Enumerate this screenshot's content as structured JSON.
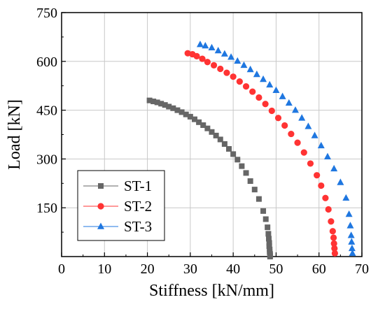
{
  "chart_data": {
    "type": "scatter",
    "title": "",
    "xlabel": "Stiffness [kN/mm]",
    "ylabel": "Load [kN]",
    "xlim": [
      0,
      70
    ],
    "ylim": [
      0,
      750
    ],
    "x_ticks": [
      "0",
      "10",
      "20",
      "30",
      "40",
      "50",
      "60",
      "70"
    ],
    "y_ticks": [
      "150",
      "300",
      "450",
      "600",
      "750"
    ],
    "grid": true,
    "legend_position": "bottom-left",
    "series": [
      {
        "name": "ST-1",
        "color": "#666666",
        "marker": "square",
        "x": [
          20.5,
          21.4,
          22.3,
          23.2,
          24.1,
          25.0,
          26.0,
          27.0,
          28.0,
          29.0,
          30.0,
          31.0,
          32.0,
          33.0,
          34.0,
          35.0,
          36.0,
          37.0,
          38.0,
          39.0,
          40.0,
          41.0,
          42.0,
          43.0,
          44.0,
          45.0,
          46.0,
          47.0,
          47.6,
          48.0,
          48.2,
          48.3,
          48.4,
          48.4,
          48.5,
          48.5,
          48.6,
          48.6,
          48.6
        ],
        "y": [
          480,
          477,
          474,
          470,
          466,
          461,
          456,
          450,
          444,
          437,
          430,
          422,
          413,
          404,
          394,
          383,
          372,
          360,
          346,
          331,
          315,
          298,
          278,
          257,
          232,
          206,
          177,
          140,
          115,
          90,
          70,
          55,
          42,
          32,
          22,
          14,
          8,
          3,
          0
        ]
      },
      {
        "name": "ST-2",
        "color": "#ff3333",
        "marker": "circle",
        "x": [
          29.4,
          30.5,
          31.5,
          32.8,
          34.0,
          35.5,
          37.0,
          38.5,
          40.0,
          41.5,
          43.0,
          44.5,
          46.0,
          47.5,
          49.0,
          50.5,
          52.0,
          53.5,
          55.0,
          56.5,
          58.0,
          59.5,
          60.5,
          61.5,
          62.2,
          62.8,
          63.2,
          63.4,
          63.5,
          63.6,
          63.7
        ],
        "y": [
          625,
          622,
          616,
          608,
          598,
          588,
          577,
          565,
          553,
          538,
          523,
          507,
          489,
          469,
          448,
          426,
          403,
          377,
          350,
          320,
          286,
          250,
          218,
          180,
          145,
          108,
          78,
          58,
          40,
          25,
          10
        ]
      },
      {
        "name": "ST-3",
        "color": "#1f77e0",
        "marker": "triangle",
        "x": [
          32.3,
          33.5,
          35.0,
          36.5,
          38.0,
          39.5,
          41.0,
          42.5,
          44.0,
          45.5,
          47.0,
          48.5,
          50.0,
          51.5,
          53.0,
          54.5,
          56.0,
          57.5,
          59.0,
          60.5,
          62.0,
          63.5,
          65.0,
          66.3,
          67.0,
          67.3,
          67.5,
          67.6,
          67.7,
          67.8
        ],
        "y": [
          652,
          648,
          642,
          633,
          623,
          613,
          601,
          588,
          575,
          560,
          545,
          528,
          511,
          492,
          472,
          450,
          426,
          400,
          372,
          341,
          307,
          270,
          228,
          180,
          130,
          95,
          65,
          45,
          25,
          10
        ]
      }
    ]
  }
}
